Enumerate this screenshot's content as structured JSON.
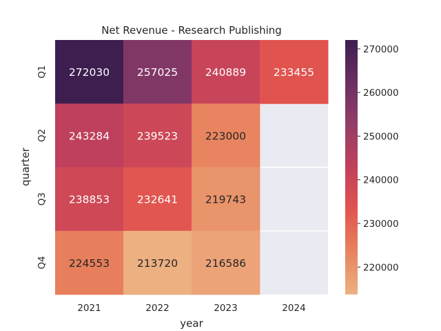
{
  "chart_data": {
    "type": "heatmap",
    "title": "Net Revenue - Research Publishing",
    "xlabel": "year",
    "ylabel": "quarter",
    "x_categories": [
      "2021",
      "2022",
      "2023",
      "2024"
    ],
    "y_categories": [
      "Q1",
      "Q2",
      "Q3",
      "Q4"
    ],
    "values": [
      [
        272030,
        257025,
        240889,
        233455
      ],
      [
        243284,
        239523,
        223000,
        null
      ],
      [
        238853,
        232641,
        219743,
        null
      ],
      [
        224553,
        213720,
        216586,
        null
      ]
    ],
    "colorbar": {
      "ticks": [
        220000,
        230000,
        240000,
        250000,
        260000,
        270000
      ],
      "range": [
        213720,
        272030
      ],
      "colormap": "flare",
      "colors": [
        "#edb081",
        "#e8835e",
        "#e1544f",
        "#c1405b",
        "#943e67",
        "#6a2f62",
        "#3d1e4f"
      ]
    },
    "missing_cell_color": "#eaeaf2",
    "grid_color": "#ffffff",
    "annotation_colors": {
      "light": "#ffffff",
      "dark": "#262626"
    }
  }
}
